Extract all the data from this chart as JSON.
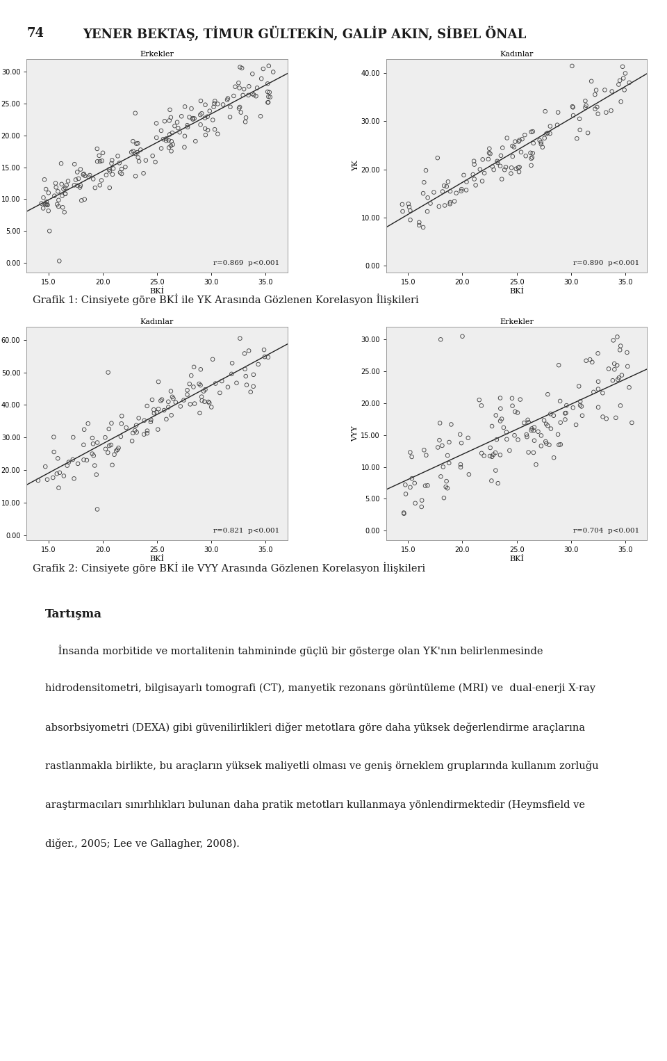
{
  "page_title_num": "74",
  "page_title_text": "YENER BEKTAŞ, TİMUR GÜLTEKİN, GALİP AKIN, SİBEL ÖNAL",
  "grafik1_caption": "Grafik 1: Cinsiyete göre BKİ ile YK Arasında Gözlenen Korelasyon İlişkileri",
  "grafik2_caption": "Grafik 2: Cinsiyete göre BKİ ile VYY Arasında Gözlenen Korelasyon İlişkileri",
  "section_title": "Tartışma",
  "paragraph_lines": [
    "    İnsanda morbitide ve mortalitenin tahmininde güçlü bir gösterge olan YK'nın belirlenmesinde",
    "hidrodensitometri, bilgisayarlı tomografi (CT), manyetik rezonans görüntüleme (MRI) ve  dual-enerji X-ray",
    "absorbsiyometri (DEXA) gibi güvenilirlikleri diğer metotlara göre daha yüksek değerlendirme araçlarına",
    "rastlanmakla birlikte, bu araçların yüksek maliyetli olması ve geniş örneklem gruplarında kullanım zorluğu",
    "araştırmacıları sınırlılıkları bulunan daha pratik metotları kullanmaya yönlendirmektedir (Heymsfield ve",
    "diğer., 2005; Lee ve Gallagher, 2008)."
  ],
  "plot1_erkekler": {
    "title": "Erkekler",
    "xlabel": "BKİ",
    "ylabel": "YK",
    "xlim": [
      13.0,
      37.0
    ],
    "ylim": [
      -1.5,
      32.0
    ],
    "xticks": [
      15.0,
      20.0,
      25.0,
      30.0,
      35.0
    ],
    "yticks": [
      0.0,
      5.0,
      10.0,
      15.0,
      20.0,
      25.0,
      30.0
    ],
    "annotation": "r=0.869  p<0.001"
  },
  "plot1_kadinlar": {
    "title": "Kadınlar",
    "xlabel": "BKİ",
    "ylabel": "YK",
    "xlim": [
      13.0,
      37.0
    ],
    "ylim": [
      -1.5,
      43.0
    ],
    "xticks": [
      15.0,
      20.0,
      25.0,
      30.0,
      35.0
    ],
    "yticks": [
      0.0,
      10.0,
      20.0,
      30.0,
      40.0
    ],
    "annotation": "r=0.890  p<0.001"
  },
  "plot2_kadinlar": {
    "title": "Kadınlar",
    "xlabel": "BKİ",
    "ylabel": "VYY",
    "xlim": [
      13.0,
      37.0
    ],
    "ylim": [
      -1.5,
      64.0
    ],
    "xticks": [
      15.0,
      20.0,
      25.0,
      30.0,
      35.0
    ],
    "yticks": [
      0.0,
      10.0,
      20.0,
      30.0,
      40.0,
      50.0,
      60.0
    ],
    "annotation": "r=0.821  p<0.001"
  },
  "plot2_erkekler": {
    "title": "Erkekler",
    "xlabel": "BKİ",
    "ylabel": "VYY",
    "xlim": [
      13.0,
      37.0
    ],
    "ylim": [
      -1.5,
      32.0
    ],
    "xticks": [
      15.0,
      20.0,
      25.0,
      30.0,
      35.0
    ],
    "yticks": [
      0.0,
      5.0,
      10.0,
      15.0,
      20.0,
      25.0,
      30.0
    ],
    "annotation": "r=0.704  p<0.001"
  },
  "background_color": "#ffffff",
  "text_color": "#1a1a1a",
  "scatter_edgecolor": "#444444",
  "line_color": "#222222",
  "plot_bg": "#eeeeee",
  "spine_color": "#999999"
}
